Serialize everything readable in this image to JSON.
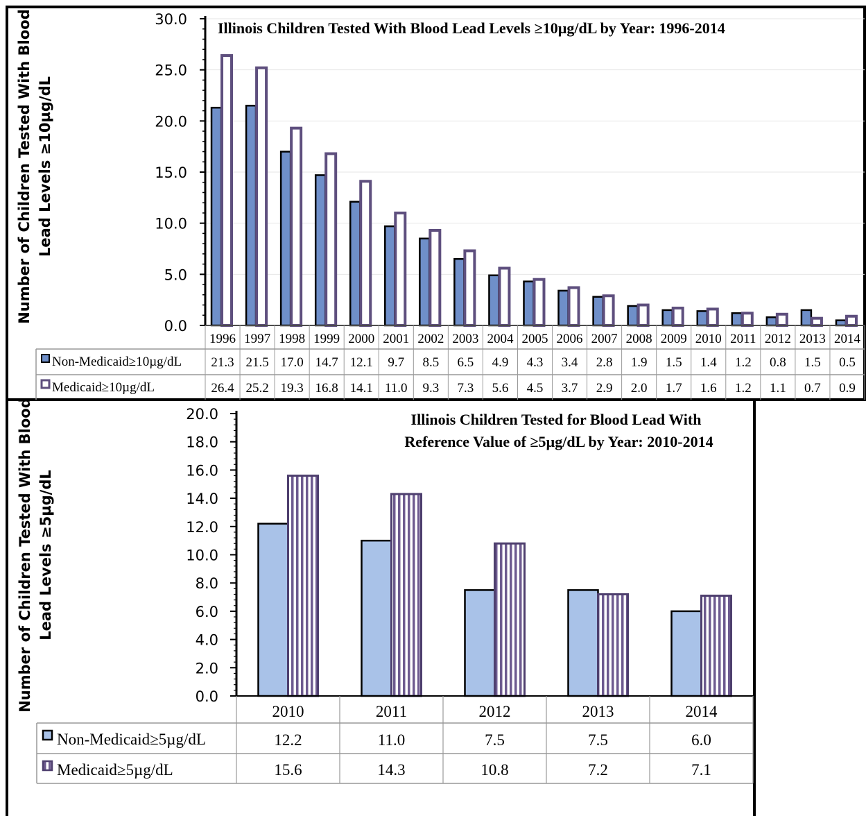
{
  "chart_data": [
    {
      "type": "bar",
      "title": "Illinois Children Tested With Blood Lead Levels ≥10µg/dL by Year: 1996-2014",
      "ylabel_line1": "Number of Children Tested With Blood",
      "ylabel_line2": "Lead Levels ≥10µg/dL",
      "ylim": [
        0,
        30
      ],
      "yticks": [
        "0.0",
        "5.0",
        "10.0",
        "15.0",
        "20.0",
        "25.0",
        "30.0"
      ],
      "categories": [
        "1996",
        "1997",
        "1998",
        "1999",
        "2000",
        "2001",
        "2002",
        "2003",
        "2004",
        "2005",
        "2006",
        "2007",
        "2008",
        "2009",
        "2010",
        "2011",
        "2012",
        "2013",
        "2014"
      ],
      "series": [
        {
          "name": "Non-Medicaid≥10µg/dL",
          "values": [
            21.3,
            21.5,
            17.0,
            14.7,
            12.1,
            9.7,
            8.5,
            6.5,
            4.9,
            4.3,
            3.4,
            2.8,
            1.9,
            1.5,
            1.4,
            1.2,
            0.8,
            1.5,
            0.5
          ],
          "labels": [
            "21.3",
            "21.5",
            "17.0",
            "14.7",
            "12.1",
            "9.7",
            "8.5",
            "6.5",
            "4.9",
            "4.3",
            "3.4",
            "2.8",
            "1.9",
            "1.5",
            "1.4",
            "1.2",
            "0.8",
            "1.5",
            "0.5"
          ],
          "color": "#6f8fc9"
        },
        {
          "name": "Medicaid≥10µg/dL",
          "values": [
            26.4,
            25.2,
            19.3,
            16.8,
            14.1,
            11.0,
            9.3,
            7.3,
            5.6,
            4.5,
            3.7,
            2.9,
            2.0,
            1.7,
            1.6,
            1.2,
            1.1,
            0.7,
            0.9
          ],
          "labels": [
            "26.4",
            "25.2",
            "19.3",
            "16.8",
            "14.1",
            "11.0",
            "9.3",
            "7.3",
            "5.6",
            "4.5",
            "3.7",
            "2.9",
            "2.0",
            "1.7",
            "1.6",
            "1.2",
            "1.1",
            "0.7",
            "0.9"
          ],
          "color": "#5e4f7e"
        }
      ],
      "grid": true,
      "data_table": true
    },
    {
      "type": "bar",
      "title_line1": "Illinois Children Tested for Blood Lead With",
      "title_line2": "Reference Value of  ≥5µg/dL by Year: 2010-2014",
      "ylabel_line1": "Number of Children Tested With Blood",
      "ylabel_line2": "Lead Levels ≥5µg/dL",
      "ylim": [
        0,
        20
      ],
      "yticks": [
        "0.0",
        "2.0",
        "4.0",
        "6.0",
        "8.0",
        "10.0",
        "12.0",
        "14.0",
        "16.0",
        "18.0",
        "20.0"
      ],
      "categories": [
        "2010",
        "2011",
        "2012",
        "2013",
        "2014"
      ],
      "series": [
        {
          "name": "Non-Medicaid≥5µg/dL",
          "values": [
            12.2,
            11.0,
            7.5,
            7.5,
            6.0
          ],
          "labels": [
            "12.2",
            "11.0",
            "7.5",
            "7.5",
            "6.0"
          ],
          "color": "#a9c2e8"
        },
        {
          "name": "Medicaid≥5µg/dL",
          "values": [
            15.6,
            14.3,
            10.8,
            7.2,
            7.1
          ],
          "labels": [
            "15.6",
            "14.3",
            "10.8",
            "7.2",
            "7.1"
          ],
          "color": "#6d5a8f"
        }
      ],
      "grid": false,
      "data_table": true
    }
  ]
}
